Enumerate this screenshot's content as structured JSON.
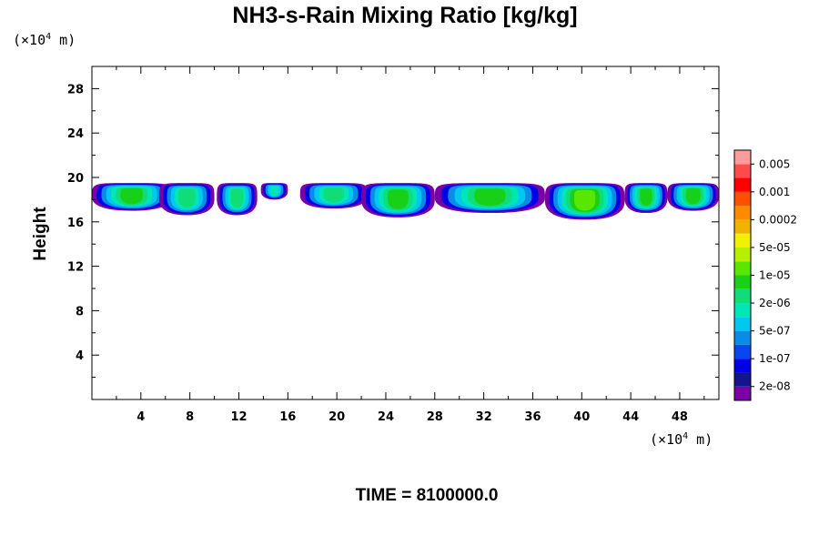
{
  "chart_data": {
    "type": "heatmap",
    "title": "NH3-s-Rain Mixing Ratio [kg/kg]",
    "ylabel": "Height",
    "x_unit": {
      "prefix": "(×10",
      "exp": "4",
      "suffix": " m)"
    },
    "y_unit": {
      "prefix": "(×10",
      "exp": "4",
      "suffix": " m)"
    },
    "xlim": [
      0,
      51.2
    ],
    "ylim": [
      0,
      30
    ],
    "x_ticks": [
      4,
      8,
      12,
      16,
      20,
      24,
      28,
      32,
      36,
      40,
      44,
      48
    ],
    "y_ticks": [
      4,
      8,
      12,
      16,
      20,
      24,
      28
    ],
    "time_label": "TIME = 8100000.0",
    "colorbar": {
      "colors": [
        "#7a00a6",
        "#14148c",
        "#0000e6",
        "#0a46f0",
        "#0a8ce6",
        "#00c8f0",
        "#00e6b4",
        "#10dc78",
        "#18d018",
        "#5ae600",
        "#b4f000",
        "#f0f000",
        "#f0b400",
        "#ff8c00",
        "#ff5000",
        "#ff0000",
        "#ff4b4b",
        "#ff9b9b"
      ],
      "labels": [
        "2e-08",
        "1e-07",
        "5e-07",
        "2e-06",
        "1e-05",
        "5e-05",
        "0.0002",
        "0.001",
        "0.005"
      ]
    },
    "cloud_layer": {
      "top_km": 19.5,
      "segments": [
        {
          "x0": 0.0,
          "x1": 6.5,
          "bottom": 17.0,
          "peak": 3
        },
        {
          "x0": 5.5,
          "x1": 10.0,
          "bottom": 16.6,
          "peak": 2
        },
        {
          "x0": 10.2,
          "x1": 13.5,
          "bottom": 16.6,
          "peak": 2
        },
        {
          "x0": 13.8,
          "x1": 16.0,
          "bottom": 18.0,
          "peak": 1
        },
        {
          "x0": 17.0,
          "x1": 22.5,
          "bottom": 17.2,
          "peak": 2
        },
        {
          "x0": 22.0,
          "x1": 28.0,
          "bottom": 16.4,
          "peak": 3
        },
        {
          "x0": 28.0,
          "x1": 37.0,
          "bottom": 16.8,
          "peak": 3
        },
        {
          "x0": 37.0,
          "x1": 43.5,
          "bottom": 16.2,
          "peak": 4
        },
        {
          "x0": 43.5,
          "x1": 47.0,
          "bottom": 16.8,
          "peak": 3
        },
        {
          "x0": 47.0,
          "x1": 51.2,
          "bottom": 17.0,
          "peak": 3
        }
      ]
    }
  }
}
